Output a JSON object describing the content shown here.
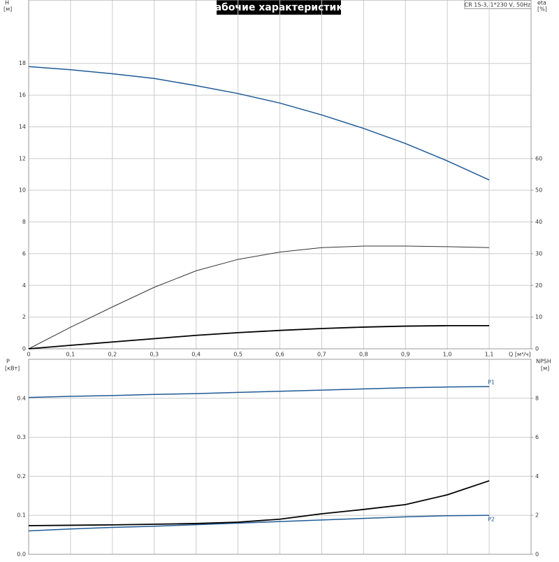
{
  "chart_data": [
    {
      "type": "line",
      "title": "Рабочие характеристики",
      "annotation": "CR 1S-3, 1*230 V, 50Hz",
      "ylabel": "H",
      "yunit": "[м]",
      "y2label": "eta",
      "y2unit": "[%]",
      "xlabel": "Q [м³/ч]",
      "x": [
        0,
        0.1,
        0.2,
        0.3,
        0.4,
        0.5,
        0.6,
        0.7,
        0.8,
        0.9,
        1.0,
        1.1
      ],
      "xlim": [
        0,
        1.2
      ],
      "xticks": [
        0,
        {
          "value": 0.1,
          "label": "0,1"
        },
        {
          "value": 0.2,
          "label": "0,2"
        },
        {
          "value": 0.3,
          "label": "0,3"
        },
        {
          "value": 0.4,
          "label": "0,4"
        },
        {
          "value": 0.5,
          "label": "0,5"
        },
        {
          "value": 0.6,
          "label": "0,6"
        },
        {
          "value": 0.7,
          "label": "0,7"
        },
        {
          "value": 0.8,
          "label": "0,8"
        },
        {
          "value": 0.9,
          "label": "0,9"
        },
        {
          "value": 1.0,
          "label": "1,0"
        },
        {
          "value": 1.1,
          "label": "1,1"
        }
      ],
      "ylim": [
        0,
        22
      ],
      "yticks": [
        0,
        2,
        4,
        6,
        8,
        10,
        12,
        14,
        16,
        18
      ],
      "y2lim": [
        0,
        110
      ],
      "y2ticks": [
        0,
        10,
        20,
        30,
        40,
        50,
        60
      ],
      "grid": true,
      "series": [
        {
          "color": "#1f5a96",
          "values": [
            17.8,
            17.6,
            17.35,
            17.05,
            16.6,
            16.1,
            15.5,
            14.75,
            13.9,
            12.95,
            11.85,
            10.65
          ]
        },
        {
          "color": "#333333",
          "axis": "y2",
          "values": [
            0,
            6.8,
            13.2,
            19.4,
            24.6,
            28.2,
            30.5,
            31.9,
            32.4,
            32.4,
            32.2,
            31.9
          ]
        },
        {
          "color": "#000000",
          "values": [
            0,
            0.22,
            0.43,
            0.64,
            0.85,
            1.02,
            1.16,
            1.28,
            1.37,
            1.43,
            1.46,
            1.46
          ]
        }
      ]
    },
    {
      "type": "line",
      "ylabel": "P",
      "yunit": "[кВт]",
      "y2label": "NPSH",
      "y2unit": "[м]",
      "x": [
        0,
        0.1,
        0.2,
        0.3,
        0.4,
        0.5,
        0.6,
        0.7,
        0.8,
        0.9,
        1.0,
        1.1
      ],
      "xlim": [
        0,
        1.2
      ],
      "xticks": [
        0,
        0.1,
        0.2,
        0.3,
        0.4,
        0.5,
        0.6,
        0.7,
        0.8,
        0.9,
        1.0,
        1.1
      ],
      "ylim": [
        0,
        0.5
      ],
      "yticks": [
        {
          "value": 0,
          "label": "0.0"
        },
        0.1,
        0.2,
        0.3,
        0.4
      ],
      "y2lim": [
        0,
        10
      ],
      "y2ticks": [
        0,
        2,
        4,
        6,
        8
      ],
      "grid": true,
      "series": [
        {
          "name": "P1",
          "color": "#1f5a96",
          "values": [
            0.402,
            0.405,
            0.407,
            0.41,
            0.412,
            0.415,
            0.418,
            0.421,
            0.424,
            0.427,
            0.429,
            0.43
          ]
        },
        {
          "name": "P2",
          "color": "#1f5a96",
          "values": [
            0.06,
            0.065,
            0.069,
            0.072,
            0.076,
            0.08,
            0.084,
            0.088,
            0.092,
            0.096,
            0.099,
            0.1
          ]
        },
        {
          "color": "#000000",
          "axis": "y2",
          "values": [
            1.47,
            1.49,
            1.51,
            1.54,
            1.58,
            1.65,
            1.8,
            2.08,
            2.3,
            2.55,
            3.05,
            3.77
          ]
        }
      ]
    }
  ]
}
